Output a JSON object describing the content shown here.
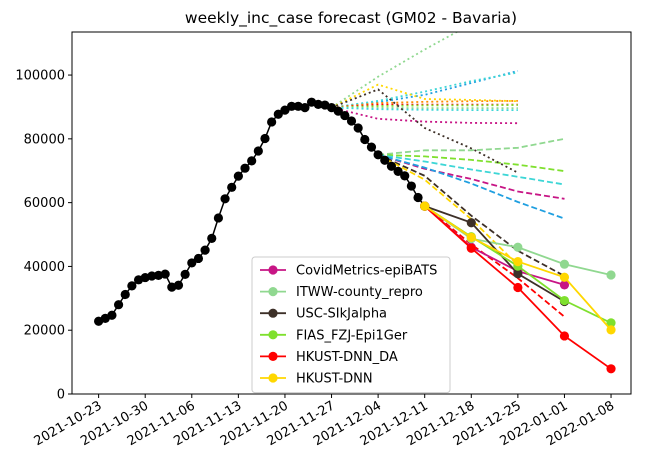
{
  "chart_data": {
    "type": "line",
    "title": "weekly_inc_case forecast (GM02 - Bavaria)",
    "xlabel": "",
    "ylabel": "",
    "x_range": [
      "2021-10-19",
      "2022-01-11"
    ],
    "ylim": [
      0,
      113500
    ],
    "y_ticks": [
      0,
      20000,
      40000,
      60000,
      80000,
      100000
    ],
    "x_ticks": [
      "2021-10-23",
      "2021-10-30",
      "2021-11-06",
      "2021-11-13",
      "2021-11-20",
      "2021-11-27",
      "2021-12-04",
      "2021-12-11",
      "2021-12-18",
      "2021-12-25",
      "2022-01-01",
      "2022-01-08"
    ],
    "grid": false,
    "legend_position": "lower center",
    "observed": {
      "color": "#000000",
      "x": [
        "2021-10-23",
        "2021-10-24",
        "2021-10-25",
        "2021-10-26",
        "2021-10-27",
        "2021-10-28",
        "2021-10-29",
        "2021-10-30",
        "2021-10-31",
        "2021-11-01",
        "2021-11-02",
        "2021-11-03",
        "2021-11-04",
        "2021-11-05",
        "2021-11-06",
        "2021-11-07",
        "2021-11-08",
        "2021-11-09",
        "2021-11-10",
        "2021-11-11",
        "2021-11-12",
        "2021-11-13",
        "2021-11-14",
        "2021-11-15",
        "2021-11-16",
        "2021-11-17",
        "2021-11-18",
        "2021-11-19",
        "2021-11-20",
        "2021-11-21",
        "2021-11-22",
        "2021-11-23",
        "2021-11-24",
        "2021-11-25",
        "2021-11-26",
        "2021-11-27",
        "2021-11-28",
        "2021-11-29",
        "2021-11-30",
        "2021-12-01",
        "2021-12-02",
        "2021-12-03",
        "2021-12-04",
        "2021-12-05",
        "2021-12-06",
        "2021-12-07",
        "2021-12-08",
        "2021-12-09",
        "2021-12-10",
        "2021-12-11"
      ],
      "y": [
        22800,
        23700,
        24700,
        28000,
        31200,
        33900,
        35800,
        36500,
        37000,
        37200,
        37600,
        33500,
        34100,
        37500,
        41100,
        42500,
        45100,
        48800,
        55200,
        61200,
        64800,
        68300,
        70800,
        73100,
        76200,
        80100,
        85300,
        87700,
        89000,
        90200,
        90200,
        89800,
        91500,
        90800,
        90600,
        89800,
        88700,
        87300,
        85600,
        83400,
        79800,
        77400,
        75000,
        73300,
        71400,
        69800,
        68400,
        65200,
        61600,
        58900
      ]
    },
    "quantile_series": [
      {
        "name": "",
        "color": "#b5b2ff",
        "style": "dotted",
        "x": [
          "2021-12-04",
          "2021-12-11",
          "2021-12-18",
          "2021-12-25",
          "2022-01-01",
          "2022-01-08"
        ],
        "y": [
          null,
          null,
          null,
          null,
          null,
          null
        ]
      }
    ],
    "series": [
      {
        "name": "CovidMetrics-epiBATS",
        "color": "#c71585",
        "marker": true,
        "x": [
          "2021-12-11",
          "2021-12-18",
          "2021-12-25",
          "2022-01-01"
        ],
        "y": [
          58900,
          46000,
          38500,
          34200
        ]
      },
      {
        "name": "ITWW-county_repro",
        "color": "#90d890",
        "marker": true,
        "x": [
          "2021-12-11",
          "2021-12-18",
          "2021-12-25",
          "2022-01-01",
          "2022-01-08"
        ],
        "y": [
          58900,
          48700,
          46000,
          40700,
          37300
        ]
      },
      {
        "name": "USC-SIkJalpha",
        "color": "#3d3028",
        "marker": true,
        "x": [
          "2021-12-11",
          "2021-12-18",
          "2021-12-25",
          "2022-01-01"
        ],
        "y": [
          58900,
          53700,
          37700,
          29000
        ]
      },
      {
        "name": "FIAS_FZJ-Epi1Ger",
        "color": "#7fe02e",
        "marker": true,
        "x": [
          "2021-12-11",
          "2021-12-18",
          "2021-12-25",
          "2022-01-01",
          "2022-01-08"
        ],
        "y": [
          58900,
          49300,
          40100,
          29300,
          22300
        ]
      },
      {
        "name": "HKUST-DNN_DA",
        "color": "#ff0000",
        "marker": true,
        "x": [
          "2021-12-11",
          "2021-12-18",
          "2021-12-25",
          "2022-01-01",
          "2022-01-08"
        ],
        "y": [
          58900,
          45700,
          33400,
          18200,
          7900
        ]
      },
      {
        "name": "HKUST-DNN",
        "color": "#ffd700",
        "marker": true,
        "x": [
          "2021-12-11",
          "2021-12-18",
          "2021-12-25",
          "2022-01-01",
          "2022-01-08"
        ],
        "y": [
          58900,
          49100,
          41500,
          36600,
          20100
        ]
      }
    ],
    "reference_lines": [
      {
        "color": "#90d890",
        "style": "dashed",
        "x": [
          "2021-12-04",
          "2021-12-11",
          "2021-12-18",
          "2021-12-25",
          "2022-01-01"
        ],
        "y": [
          75000,
          76400,
          76400,
          77200,
          80000
        ]
      },
      {
        "color": "#7fe02e",
        "style": "dashed",
        "x": [
          "2021-12-04",
          "2021-12-11",
          "2021-12-18",
          "2021-12-25",
          "2022-01-01"
        ],
        "y": [
          75000,
          74500,
          73400,
          71900,
          69900
        ]
      },
      {
        "color": "#3dd6d6",
        "style": "dashed",
        "x": [
          "2021-12-04",
          "2021-12-11",
          "2021-12-18",
          "2021-12-25",
          "2022-01-01"
        ],
        "y": [
          75000,
          72900,
          70400,
          68100,
          65700
        ]
      },
      {
        "color": "#c71585",
        "style": "dashed",
        "x": [
          "2021-12-04",
          "2021-12-11",
          "2021-12-18",
          "2021-12-25",
          "2022-01-01"
        ],
        "y": [
          75000,
          70600,
          67400,
          63500,
          61200
        ]
      },
      {
        "color": "#1f9fe0",
        "style": "dashed",
        "x": [
          "2021-12-04",
          "2021-12-11",
          "2021-12-18",
          "2021-12-25",
          "2022-01-01"
        ],
        "y": [
          75000,
          71000,
          66000,
          60200,
          55000
        ]
      },
      {
        "color": "#3d3028",
        "style": "dashed",
        "x": [
          "2021-12-04",
          "2021-12-11",
          "2021-12-18",
          "2021-12-25",
          "2022-01-01"
        ],
        "y": [
          75000,
          68400,
          55900,
          44900,
          37000
        ]
      },
      {
        "color": "#ff0000",
        "style": "dashed",
        "x": [
          "2021-12-11",
          "2021-12-18",
          "2021-12-25",
          "2022-01-01"
        ],
        "y": [
          58900,
          46900,
          36300,
          24200
        ]
      },
      {
        "color": "#ffd700",
        "style": "dashed",
        "x": [
          "2021-12-04",
          "2021-12-11",
          "2021-12-18",
          "2021-12-25"
        ],
        "y": [
          75000,
          67200,
          54800,
          40400
        ]
      },
      {
        "color": "#90d890",
        "style": "dotted",
        "x": [
          "2021-11-27",
          "2021-12-04",
          "2021-12-11",
          "2021-12-18"
        ],
        "y": [
          89800,
          99500,
          108000,
          116000
        ]
      },
      {
        "color": "#1f9fe0",
        "style": "dotted",
        "x": [
          "2021-11-27",
          "2021-12-04",
          "2021-12-11",
          "2021-12-18",
          "2021-12-25"
        ],
        "y": [
          89800,
          91500,
          93800,
          97500,
          101300
        ]
      },
      {
        "color": "#3dd6d6",
        "style": "dotted",
        "x": [
          "2021-11-27",
          "2021-12-04",
          "2021-12-11",
          "2021-12-18",
          "2021-12-25"
        ],
        "y": [
          89800,
          91900,
          94800,
          98100,
          100800
        ]
      },
      {
        "color": "#ffd700",
        "style": "dotted",
        "x": [
          "2021-11-27",
          "2021-12-04",
          "2021-12-11",
          "2021-12-18",
          "2021-12-25"
        ],
        "y": [
          89800,
          97000,
          92500,
          92200,
          91800
        ]
      },
      {
        "color": "#ff8c00",
        "style": "dotted",
        "x": [
          "2021-11-27",
          "2021-12-04",
          "2021-12-11",
          "2021-12-18",
          "2021-12-25"
        ],
        "y": [
          89800,
          91200,
          91600,
          91800,
          91900
        ]
      },
      {
        "color": "#ff0000",
        "style": "dotted",
        "x": [
          "2021-11-27",
          "2021-12-04",
          "2021-12-11",
          "2021-12-18",
          "2021-12-25"
        ],
        "y": [
          89800,
          90700,
          90700,
          90700,
          90700
        ]
      },
      {
        "color": "#7fe02e",
        "style": "dotted",
        "x": [
          "2021-11-27",
          "2021-12-04",
          "2021-12-11",
          "2021-12-18",
          "2021-12-25"
        ],
        "y": [
          89800,
          90300,
          90500,
          90500,
          90600
        ]
      },
      {
        "color": "#90d890",
        "style": "dotted",
        "x": [
          "2021-11-27",
          "2021-12-04",
          "2021-12-11",
          "2021-12-18",
          "2021-12-25"
        ],
        "y": [
          89800,
          89700,
          89600,
          89600,
          89600
        ]
      },
      {
        "color": "#3dd6d6",
        "style": "dotted",
        "x": [
          "2021-11-27",
          "2021-12-04",
          "2021-12-11",
          "2021-12-18",
          "2021-12-25"
        ],
        "y": [
          89800,
          89300,
          89100,
          89000,
          89000
        ]
      },
      {
        "color": "#c71585",
        "style": "dotted",
        "x": [
          "2021-11-27",
          "2021-12-04",
          "2021-12-11",
          "2021-12-18",
          "2021-12-25"
        ],
        "y": [
          89800,
          86300,
          85400,
          85000,
          84900
        ]
      },
      {
        "color": "#3d3028",
        "style": "dotted",
        "x": [
          "2021-11-27",
          "2021-12-04",
          "2021-12-11",
          "2021-12-18",
          "2021-12-25"
        ],
        "y": [
          89800,
          95500,
          83400,
          77000,
          69400
        ]
      }
    ]
  }
}
